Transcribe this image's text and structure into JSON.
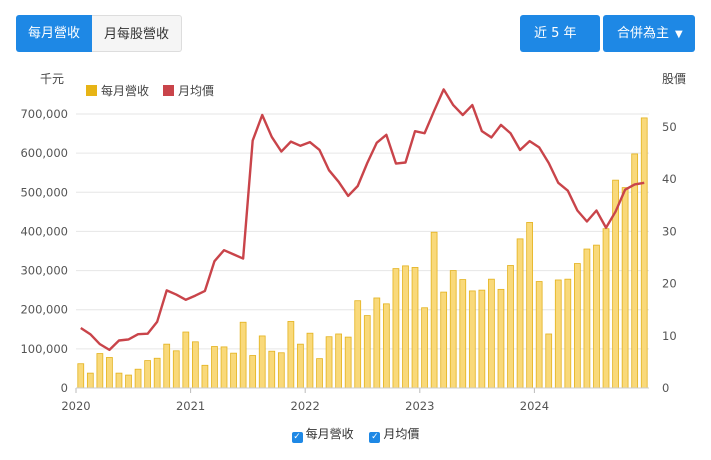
{
  "tabs": {
    "monthly": "每月營收",
    "monthly_stock": "月每股營收"
  },
  "range_dropdown": "近 5 年",
  "scope_dropdown": "合併為主",
  "bottom_legend": {
    "revenue": "每月營收",
    "price": "月均價"
  },
  "colors": {
    "bar_fill": "#f9d97a",
    "bar_stroke": "#e3b21e",
    "line": "#c9444a",
    "accent": "#1e88e5"
  },
  "chart_data": {
    "type": "bar+line",
    "left_unit_label": "千元",
    "right_unit_label": "股價",
    "ylim": [
      0,
      700000
    ],
    "y_ticks": [
      "0",
      "100,000",
      "200,000",
      "300,000",
      "400,000",
      "500,000",
      "600,000",
      "700,000"
    ],
    "y2lim": [
      0,
      50
    ],
    "y2_ticks": [
      "0",
      "10",
      "20",
      "30",
      "40",
      "50"
    ],
    "x_ticks": [
      "2020",
      "2021",
      "2022",
      "2023",
      "2024"
    ],
    "legend": [
      "每月營收",
      "月均價"
    ],
    "legend_position": "top-left",
    "grid": true,
    "months": [
      "2020-01",
      "2020-02",
      "2020-03",
      "2020-04",
      "2020-05",
      "2020-06",
      "2020-07",
      "2020-08",
      "2020-09",
      "2020-10",
      "2020-11",
      "2020-12",
      "2021-01",
      "2021-02",
      "2021-03",
      "2021-04",
      "2021-05",
      "2021-06",
      "2021-07",
      "2021-08",
      "2021-09",
      "2021-10",
      "2021-11",
      "2021-12",
      "2022-01",
      "2022-02",
      "2022-03",
      "2022-04",
      "2022-05",
      "2022-06",
      "2022-07",
      "2022-08",
      "2022-09",
      "2022-10",
      "2022-11",
      "2022-12",
      "2023-01",
      "2023-02",
      "2023-03",
      "2023-04",
      "2023-05",
      "2023-06",
      "2023-07",
      "2023-08",
      "2023-09",
      "2023-10",
      "2023-11",
      "2023-12",
      "2024-01",
      "2024-02",
      "2024-03",
      "2024-04",
      "2024-05",
      "2024-06",
      "2024-07",
      "2024-08",
      "2024-09",
      "2024-10",
      "2024-11",
      "2024-12"
    ],
    "series": [
      {
        "name": "每月營收",
        "type": "bar",
        "values": [
          62000,
          38000,
          88000,
          78000,
          38000,
          33000,
          48000,
          70000,
          76000,
          112000,
          95000,
          143000,
          118000,
          58000,
          106000,
          105000,
          89000,
          168000,
          83000,
          133000,
          94000,
          90000,
          170000,
          112000,
          140000,
          75000,
          131000,
          138000,
          130000,
          223000,
          185000,
          230000,
          215000,
          305000,
          312000,
          308000,
          205000,
          398000,
          245000,
          300000,
          277000,
          248000,
          250000,
          278000,
          252000,
          313000,
          381000,
          423000,
          272000,
          138000,
          276000,
          278000,
          318000,
          355000,
          365000,
          407000,
          531000,
          512000,
          598000,
          690000
        ]
      },
      {
        "name": "月均價",
        "type": "line",
        "values": [
          11.5,
          10.3,
          8.4,
          7.3,
          9.1,
          9.3,
          10.3,
          10.4,
          12.7,
          18.7,
          17.9,
          16.9,
          17.7,
          18.6,
          24.3,
          26.4,
          25.6,
          24.8,
          47.4,
          52.3,
          48.1,
          45.3,
          47.2,
          46.4,
          47.1,
          45.6,
          41.7,
          39.5,
          36.8,
          38.7,
          43.1,
          47.0,
          48.5,
          43.0,
          43.2,
          49.2,
          48.8,
          53.1,
          57.2,
          54.2,
          52.3,
          54.2,
          49.2,
          48.0,
          50.4,
          48.8,
          45.6,
          47.3,
          46.1,
          43.1,
          39.3,
          37.8,
          34.0,
          31.9,
          34.0,
          30.7,
          33.8,
          38.0,
          39.0,
          39.3
        ]
      }
    ]
  }
}
